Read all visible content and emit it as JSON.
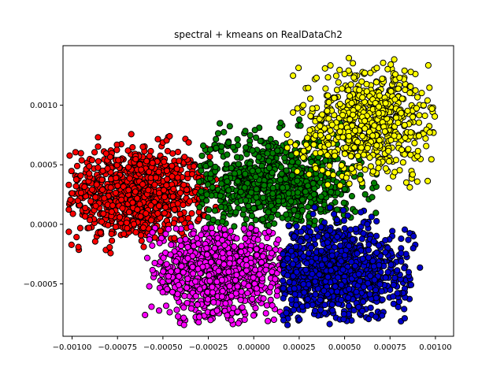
{
  "chart_data": {
    "type": "scatter",
    "title": "spectral + kmeans on RealDataCh2",
    "xlabel": "",
    "ylabel": "",
    "xlim": [
      -0.00105,
      0.0011
    ],
    "ylim": [
      -0.00094,
      0.0015
    ],
    "grid": false,
    "legend": "none",
    "x_ticks": [
      -0.001,
      -0.00075,
      -0.0005,
      -0.00025,
      0.0,
      0.00025,
      0.0005,
      0.00075,
      0.001
    ],
    "x_tick_labels": [
      "−0.00100",
      "−0.00075",
      "−0.00050",
      "−0.00025",
      "0.00000",
      "0.00025",
      "0.00050",
      "0.00075",
      "0.00100"
    ],
    "y_ticks": [
      -0.0005,
      0.0,
      0.0005,
      0.001
    ],
    "y_tick_labels": [
      "−0.0005",
      "0.0000",
      "0.0005",
      "0.0010"
    ],
    "marker_edge_color": "#000000",
    "clusters": [
      {
        "color": "#ff0000",
        "center": [
          -0.00065,
          0.00025
        ],
        "spread": [
          0.0002,
          0.0002
        ],
        "x_range": [
          -0.00102,
          -0.0002
        ],
        "y_range": [
          -0.00025,
          0.00082
        ],
        "count": 900
      },
      {
        "color": "#008000",
        "center": [
          0.0001,
          0.00035
        ],
        "spread": [
          0.00025,
          0.0002
        ],
        "x_range": [
          -0.0003,
          0.0007
        ],
        "y_range": [
          -2e-05,
          0.00092
        ],
        "count": 800
      },
      {
        "color": "#ffff00",
        "center": [
          0.00065,
          0.00085
        ],
        "spread": [
          0.0002,
          0.00025
        ],
        "x_range": [
          0.00015,
          0.001
        ],
        "y_range": [
          0.0003,
          0.0014
        ],
        "count": 650
      },
      {
        "color": "#ff00ff",
        "center": [
          -0.0002,
          -0.0004
        ],
        "spread": [
          0.0002,
          0.0002
        ],
        "x_range": [
          -0.0006,
          0.00015
        ],
        "y_range": [
          -0.00085,
          -2e-05
        ],
        "count": 850
      },
      {
        "color": "#0000cd",
        "center": [
          0.00045,
          -0.0004
        ],
        "spread": [
          0.0002,
          0.0002
        ],
        "x_range": [
          0.00015,
          0.00092
        ],
        "y_range": [
          -0.00085,
          0.00015
        ],
        "count": 950
      }
    ]
  }
}
